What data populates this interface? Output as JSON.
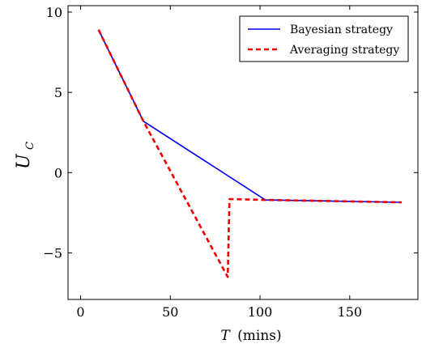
{
  "chart_data": {
    "type": "line",
    "xlabel_var": "T",
    "xlabel_unit": "(mins)",
    "ylabel_main": "U",
    "ylabel_sub": "C",
    "xlim": [
      -7,
      188
    ],
    "ylim": [
      -7.9,
      10.4
    ],
    "x_ticks": [
      0,
      50,
      100,
      150
    ],
    "y_ticks": [
      -5,
      0,
      5,
      10
    ],
    "x_tick_labels": [
      "0",
      "50",
      "100",
      "150"
    ],
    "y_tick_labels": [
      "−5",
      "0",
      "5",
      "10"
    ],
    "grid": false,
    "legend_position": "top-right",
    "series": [
      {
        "name": "Bayesian strategy",
        "color": "#0000ee",
        "style": "solid",
        "points": [
          [
            10,
            8.9
          ],
          [
            35,
            3.2
          ],
          [
            103,
            -1.7
          ],
          [
            179,
            -1.85
          ]
        ]
      },
      {
        "name": "Averaging strategy",
        "color": "#ee0000",
        "style": "dashed",
        "points": [
          [
            10,
            8.9
          ],
          [
            35,
            3.2
          ],
          [
            82,
            -6.5
          ],
          [
            83,
            -1.65
          ],
          [
            103,
            -1.7
          ],
          [
            179,
            -1.85
          ]
        ]
      }
    ]
  }
}
